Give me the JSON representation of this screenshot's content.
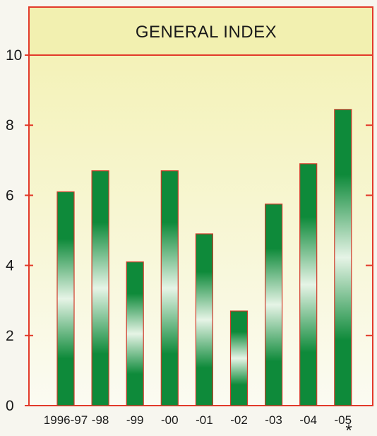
{
  "chart_data": {
    "type": "bar",
    "title": "GENERAL INDEX",
    "categories": [
      "1996-97",
      "-98",
      "-99",
      "-00",
      "-01",
      "-02",
      "-03",
      "-04",
      "-05"
    ],
    "values": [
      6.1,
      6.7,
      4.1,
      6.7,
      4.9,
      2.7,
      5.75,
      6.9,
      8.45
    ],
    "ylim": [
      0,
      10
    ],
    "yticks": [
      0,
      2,
      4,
      6,
      8,
      10
    ],
    "ytick_labels": [
      "0",
      "2",
      "4",
      "6",
      "8",
      "10"
    ],
    "xlabel": "",
    "ylabel": "",
    "grid": false,
    "footnote_marker": "*",
    "colors": {
      "bar_dark": "#0e8a3a",
      "bar_light": "#e6f4e6",
      "bar_edge": "#d03a2a",
      "frame": "#e23a2a",
      "plot_bg_top": "#f4f2b8",
      "plot_bg_bottom": "#fbfbf2",
      "title_bg": "#f2f0b0"
    }
  }
}
